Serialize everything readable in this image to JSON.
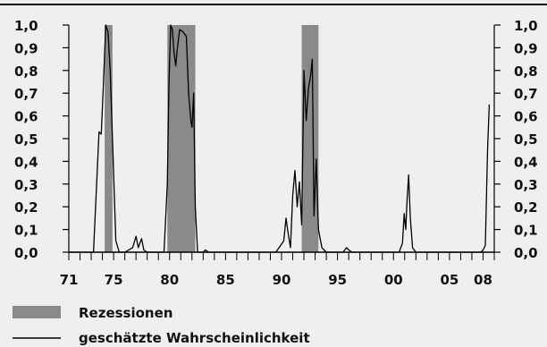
{
  "chart_data": {
    "type": "line",
    "title": "",
    "xlabel": "",
    "ylabel": "",
    "xlim": [
      1971,
      2009
    ],
    "ylim": [
      0,
      1
    ],
    "y_ticks": [
      "0,0",
      "0,1",
      "0,2",
      "0,3",
      "0,4",
      "0,5",
      "0,6",
      "0,7",
      "0,8",
      "0,9",
      "1,0"
    ],
    "x_ticks": [
      {
        "year": 1971,
        "label": "71"
      },
      {
        "year": 1975,
        "label": "75"
      },
      {
        "year": 1980,
        "label": "80"
      },
      {
        "year": 1985,
        "label": "85"
      },
      {
        "year": 1990,
        "label": "90"
      },
      {
        "year": 1995,
        "label": "95"
      },
      {
        "year": 2000,
        "label": "00"
      },
      {
        "year": 2005,
        "label": "05"
      },
      {
        "year": 2008,
        "label": "08"
      }
    ],
    "grid": false,
    "legend_placement": "bottom-left",
    "recessions": {
      "name": "Rezessionen",
      "color": "#8a8a8a",
      "periods": [
        [
          1974.2,
          1974.9
        ],
        [
          1979.8,
          1982.3
        ],
        [
          1991.8,
          1993.3
        ]
      ]
    },
    "series": [
      {
        "name": "geschätzte Wahrscheinlichkeit",
        "color": "#000000",
        "points": [
          [
            1971.0,
            0.0
          ],
          [
            1972.5,
            0.0
          ],
          [
            1973.2,
            0.0
          ],
          [
            1973.7,
            0.53
          ],
          [
            1973.9,
            0.52
          ],
          [
            1974.1,
            0.75
          ],
          [
            1974.3,
            1.0
          ],
          [
            1974.5,
            0.97
          ],
          [
            1974.7,
            0.8
          ],
          [
            1975.0,
            0.35
          ],
          [
            1975.2,
            0.05
          ],
          [
            1975.5,
            0.0
          ],
          [
            1976.0,
            0.0
          ],
          [
            1976.7,
            0.02
          ],
          [
            1977.0,
            0.07
          ],
          [
            1977.2,
            0.02
          ],
          [
            1977.5,
            0.06
          ],
          [
            1977.7,
            0.01
          ],
          [
            1978.0,
            0.0
          ],
          [
            1979.5,
            0.0
          ],
          [
            1979.8,
            0.3
          ],
          [
            1979.95,
            0.75
          ],
          [
            1980.1,
            1.0
          ],
          [
            1980.25,
            0.98
          ],
          [
            1980.4,
            0.88
          ],
          [
            1980.55,
            0.82
          ],
          [
            1980.7,
            0.9
          ],
          [
            1980.9,
            0.98
          ],
          [
            1981.2,
            0.97
          ],
          [
            1981.5,
            0.95
          ],
          [
            1981.7,
            0.7
          ],
          [
            1981.9,
            0.58
          ],
          [
            1982.0,
            0.55
          ],
          [
            1982.15,
            0.7
          ],
          [
            1982.3,
            0.2
          ],
          [
            1982.5,
            0.0
          ],
          [
            1983.0,
            0.0
          ],
          [
            1983.2,
            0.01
          ],
          [
            1983.5,
            0.0
          ],
          [
            1989.5,
            0.0
          ],
          [
            1990.2,
            0.05
          ],
          [
            1990.4,
            0.15
          ],
          [
            1990.6,
            0.08
          ],
          [
            1990.8,
            0.02
          ],
          [
            1991.0,
            0.25
          ],
          [
            1991.2,
            0.36
          ],
          [
            1991.4,
            0.2
          ],
          [
            1991.6,
            0.31
          ],
          [
            1991.8,
            0.12
          ],
          [
            1992.0,
            0.8
          ],
          [
            1992.2,
            0.58
          ],
          [
            1992.4,
            0.72
          ],
          [
            1992.6,
            0.78
          ],
          [
            1992.75,
            0.85
          ],
          [
            1992.9,
            0.16
          ],
          [
            1993.1,
            0.41
          ],
          [
            1993.3,
            0.1
          ],
          [
            1993.6,
            0.02
          ],
          [
            1994.0,
            0.0
          ],
          [
            1995.5,
            0.0
          ],
          [
            1995.8,
            0.02
          ],
          [
            1996.0,
            0.01
          ],
          [
            1996.3,
            0.0
          ],
          [
            2000.5,
            0.0
          ],
          [
            2000.8,
            0.04
          ],
          [
            2000.95,
            0.17
          ],
          [
            2001.1,
            0.1
          ],
          [
            2001.2,
            0.22
          ],
          [
            2001.35,
            0.34
          ],
          [
            2001.5,
            0.15
          ],
          [
            2001.7,
            0.02
          ],
          [
            2002.0,
            0.0
          ],
          [
            2007.8,
            0.0
          ],
          [
            2008.0,
            0.01
          ],
          [
            2008.2,
            0.03
          ],
          [
            2008.4,
            0.45
          ],
          [
            2008.55,
            0.65
          ]
        ]
      }
    ]
  }
}
